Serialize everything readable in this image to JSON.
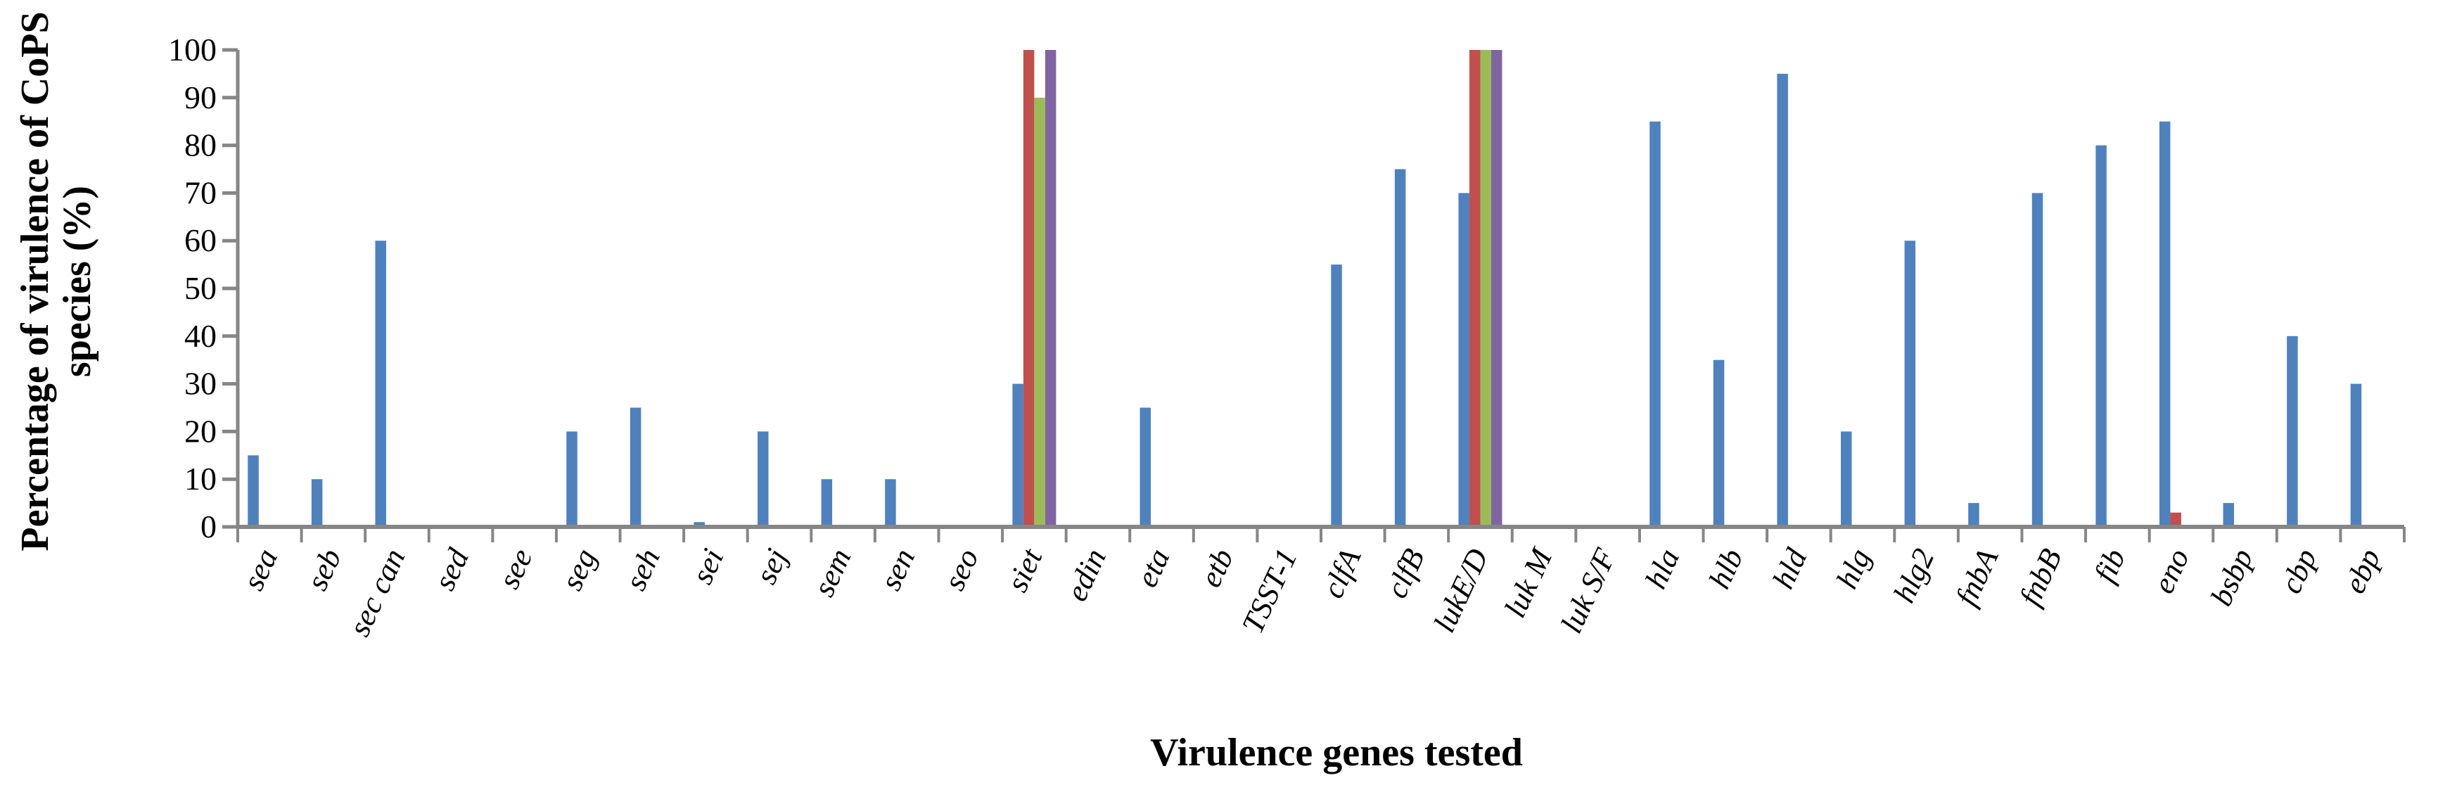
{
  "chart_data": {
    "type": "bar",
    "title": "",
    "xlabel": "Virulence genes tested",
    "ylabel_lines": [
      "Percentage of virulence of CoPS",
      "species (%)"
    ],
    "ylim": [
      0,
      100
    ],
    "yticks": [
      0,
      10,
      20,
      30,
      40,
      50,
      60,
      70,
      80,
      90,
      100
    ],
    "grid": false,
    "legend": "none",
    "categories": [
      "sea",
      "seb",
      "sec can",
      "sed",
      "see",
      "seg",
      "seh",
      "sei",
      "sej",
      "sem",
      "sen",
      "seo",
      "siet",
      "edin",
      "eta",
      "etb",
      "TSST-1",
      "clfA",
      "clfB",
      "lukE/D",
      "luk M",
      "luk S/F",
      "hla",
      "hlb",
      "hld",
      "hlg",
      "hlg2",
      "fnbA",
      "fnbB",
      "fib",
      "eno",
      "bsbp",
      "cbp",
      "ebp"
    ],
    "series": [
      {
        "color": "#4F81BD",
        "values": [
          15,
          10,
          60,
          0,
          0,
          20,
          25,
          1,
          20,
          10,
          10,
          0,
          30,
          0,
          25,
          0,
          0,
          55,
          75,
          70,
          0,
          0,
          85,
          35,
          95,
          20,
          60,
          5,
          70,
          80,
          85,
          5,
          40,
          30
        ]
      },
      {
        "color": "#C0504D",
        "values": [
          0,
          0,
          0,
          0,
          0,
          0,
          0,
          0,
          0,
          0,
          0,
          0,
          100,
          0,
          0,
          0,
          0,
          0,
          0,
          100,
          0,
          0,
          0,
          0,
          0,
          0,
          0,
          0,
          0,
          0,
          3,
          0,
          0,
          0
        ]
      },
      {
        "color": "#9BBB59",
        "values": [
          0,
          0,
          0,
          0,
          0,
          0,
          0,
          0,
          0,
          0,
          0,
          0,
          90,
          0,
          0,
          0,
          0,
          0,
          0,
          100,
          0,
          0,
          0,
          0,
          0,
          0,
          0,
          0,
          0,
          0,
          0,
          0,
          0,
          0
        ]
      },
      {
        "color": "#8064A2",
        "values": [
          0,
          0,
          0,
          0,
          0,
          0,
          0,
          0,
          0,
          0,
          0,
          0,
          100,
          0,
          0,
          0,
          0,
          0,
          0,
          100,
          0,
          0,
          0,
          0,
          0,
          0,
          0,
          0,
          0,
          0,
          0,
          0,
          0,
          0
        ]
      }
    ],
    "axis_color": "#868686"
  }
}
